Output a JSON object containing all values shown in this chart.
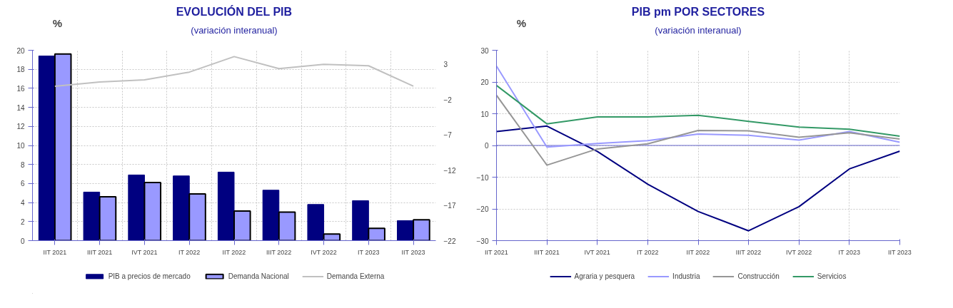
{
  "chart_data": [
    {
      "type": "bar",
      "title": "EVOLUCIÓN DEL PIB",
      "subtitle": "(variación interanual)",
      "ylabel": "%",
      "categories": [
        "IIT 2021",
        "IIIT 2021",
        "IVT 2021",
        "IT 2022",
        "IIT 2022",
        "IIIT 2022",
        "IVT 2022",
        "IT 2023",
        "IIT 2023"
      ],
      "series": [
        {
          "name": "PIB a precios de mercado",
          "color": "#000080",
          "values": [
            19.4,
            5.1,
            6.9,
            6.8,
            7.2,
            5.3,
            3.8,
            4.2,
            2.1
          ]
        },
        {
          "name": "Demanda Nacional",
          "color": "#9999ff",
          "values": [
            19.6,
            4.6,
            6.1,
            4.9,
            3.1,
            3.0,
            0.7,
            1.3,
            2.2
          ]
        },
        {
          "name": "Demanda Externa",
          "color": "#c0c0c0",
          "type": "line",
          "axis": "y2",
          "values": [
            -0.1,
            0.5,
            0.8,
            1.9,
            4.1,
            2.4,
            3.0,
            2.8,
            -0.1
          ]
        }
      ],
      "ylim": [
        0,
        20
      ],
      "yticks": [
        0,
        2,
        4,
        6,
        8,
        10,
        12,
        14,
        16,
        18,
        20
      ],
      "y2lim": [
        -22,
        5
      ],
      "y2ticks": [
        -22,
        -17,
        -12,
        -7,
        -2,
        3
      ],
      "grid": true,
      "legend": "bottom"
    },
    {
      "type": "line",
      "title": "PIB pm POR SECTORES",
      "subtitle": "(variación interanual)",
      "ylabel": "%",
      "categories": [
        "IIT 2021",
        "IIIT 2021",
        "IVT 2021",
        "IT 2022",
        "IIT 2022",
        "IIIT 2022",
        "IVT 2022",
        "IT 2023",
        "IIT 2023"
      ],
      "series": [
        {
          "name": "Agraria y pesquera",
          "color": "#000080",
          "values": [
            4.4,
            6.1,
            -1.9,
            -12.2,
            -20.8,
            -26.9,
            -19.3,
            -7.4,
            -1.8
          ]
        },
        {
          "name": "Industria",
          "color": "#9999ff",
          "values": [
            25.0,
            -0.5,
            0.6,
            1.5,
            3.6,
            3.2,
            1.7,
            4.4,
            1.0
          ]
        },
        {
          "name": "Construcción",
          "color": "#969696",
          "values": [
            15.8,
            -6.2,
            -1.1,
            0.5,
            4.7,
            4.6,
            2.6,
            4.0,
            2.0
          ]
        },
        {
          "name": "Servicios",
          "color": "#339966",
          "values": [
            18.9,
            6.8,
            9.0,
            9.0,
            9.5,
            7.6,
            5.8,
            5.1,
            2.9
          ]
        }
      ],
      "ylim": [
        -30,
        30
      ],
      "yticks": [
        -30,
        -20,
        -10,
        0,
        10,
        20,
        30
      ],
      "ref_lines": [
        {
          "axis": "y",
          "value": 0,
          "color": "#6666cc"
        }
      ],
      "grid": true,
      "legend": "bottom"
    }
  ]
}
